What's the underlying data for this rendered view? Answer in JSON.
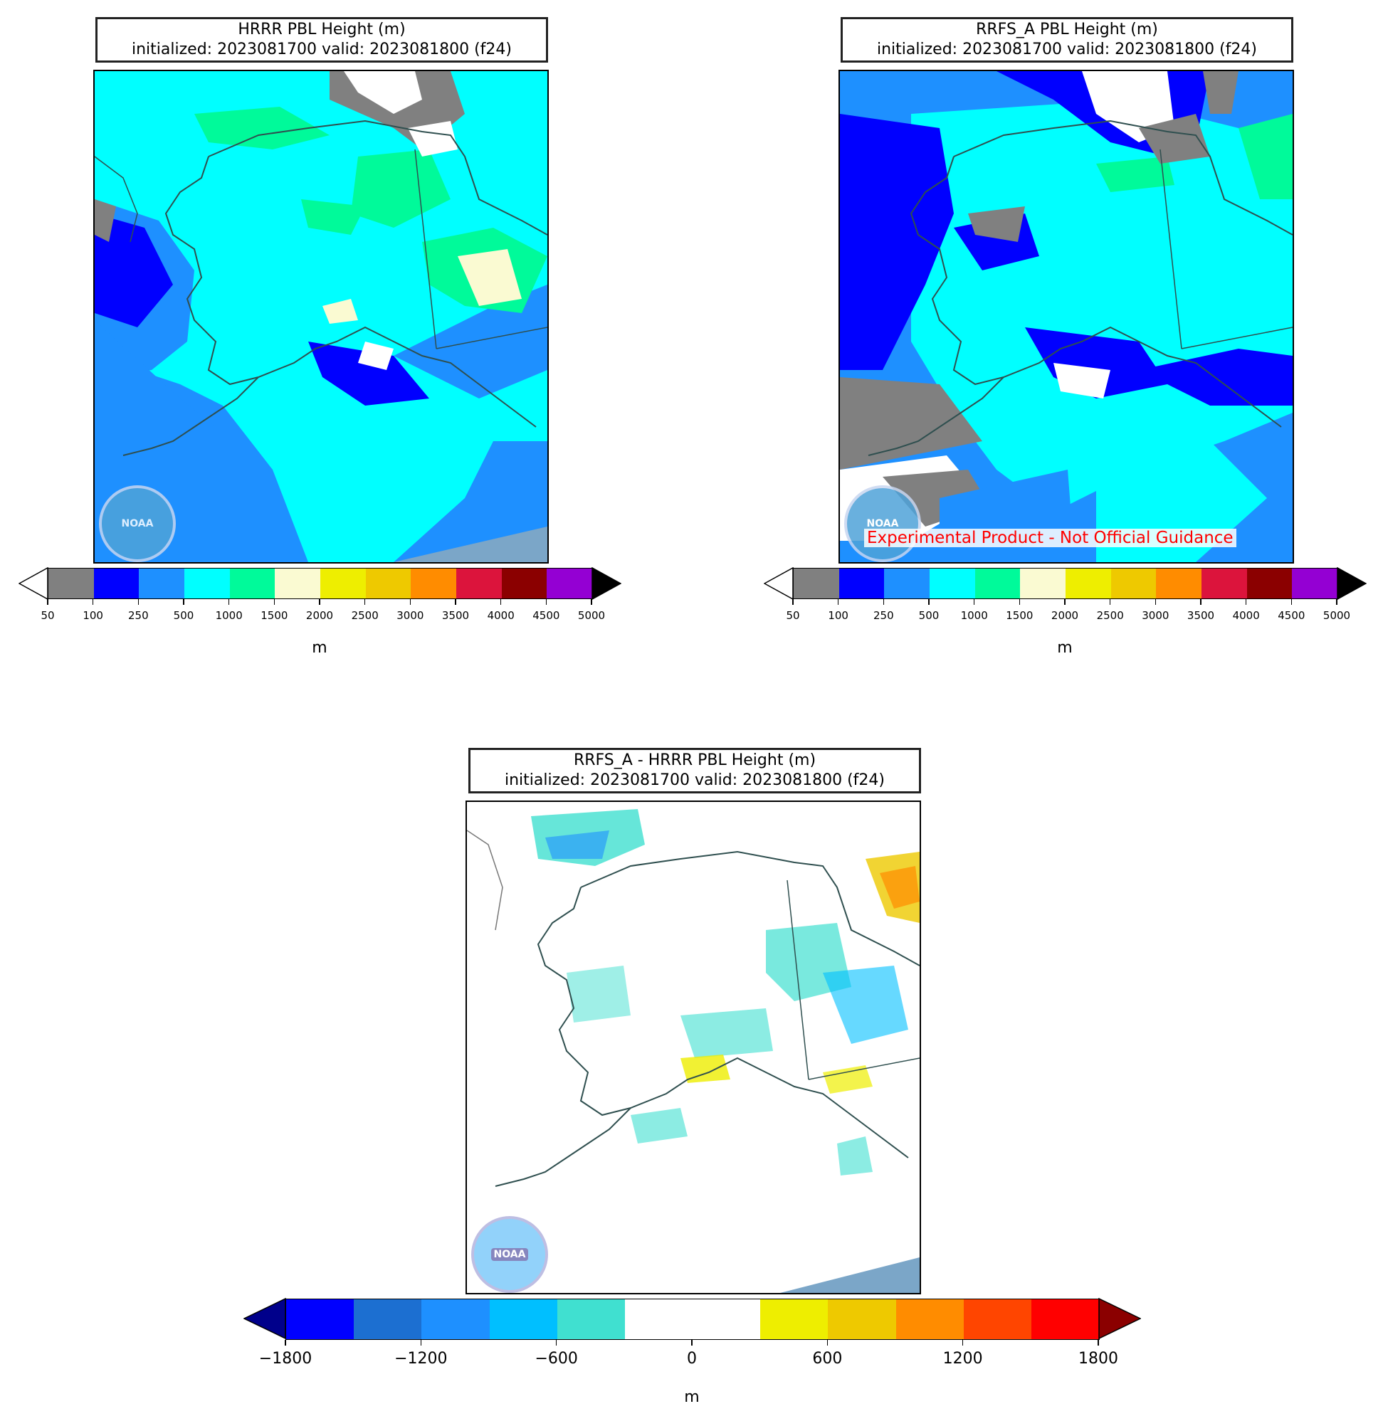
{
  "panels": {
    "hrrr": {
      "title_line1": "HRRR PBL Height (m)",
      "title_line2": "initialized: 2023081700 valid: 2023081800 (f24)"
    },
    "rrfs": {
      "title_line1": "RRFS_A PBL Height (m)",
      "title_line2": "initialized: 2023081700 valid: 2023081800 (f24)",
      "watermark": "Experimental Product - Not Official Guidance"
    },
    "diff": {
      "title_line1": "RRFS_A - HRRR PBL Height (m)",
      "title_line2": "initialized: 2023081700 valid: 2023081800 (f24)"
    }
  },
  "pbl_colorbar": {
    "ticks": [
      "50",
      "100",
      "250",
      "500",
      "1000",
      "1500",
      "2000",
      "2500",
      "3000",
      "3500",
      "4000",
      "4500",
      "5000"
    ],
    "colors": [
      "#808080",
      "#0000ff",
      "#1e90ff",
      "#00ffff",
      "#00fa9a",
      "#fafad2",
      "#eeee00",
      "#eec900",
      "#ff8c00",
      "#dc143c",
      "#8b0000",
      "#9400d3"
    ],
    "under_color": "#ffffff",
    "over_color": "#000000",
    "unit": "m"
  },
  "diff_colorbar": {
    "ticks": [
      "−1800",
      "−1200",
      "−600",
      "0",
      "600",
      "1200",
      "1800"
    ],
    "colors": [
      "#0000ff",
      "#1c6fd1",
      "#1e90ff",
      "#00bfff",
      "#40e0d0",
      "#ffffff",
      "#ffffff",
      "#eeee00",
      "#eec900",
      "#ff8c00",
      "#ff4500",
      "#ff0000"
    ],
    "under_color": "#00008b",
    "over_color": "#8b0000",
    "unit": "m"
  },
  "logo_label": "NOAA"
}
